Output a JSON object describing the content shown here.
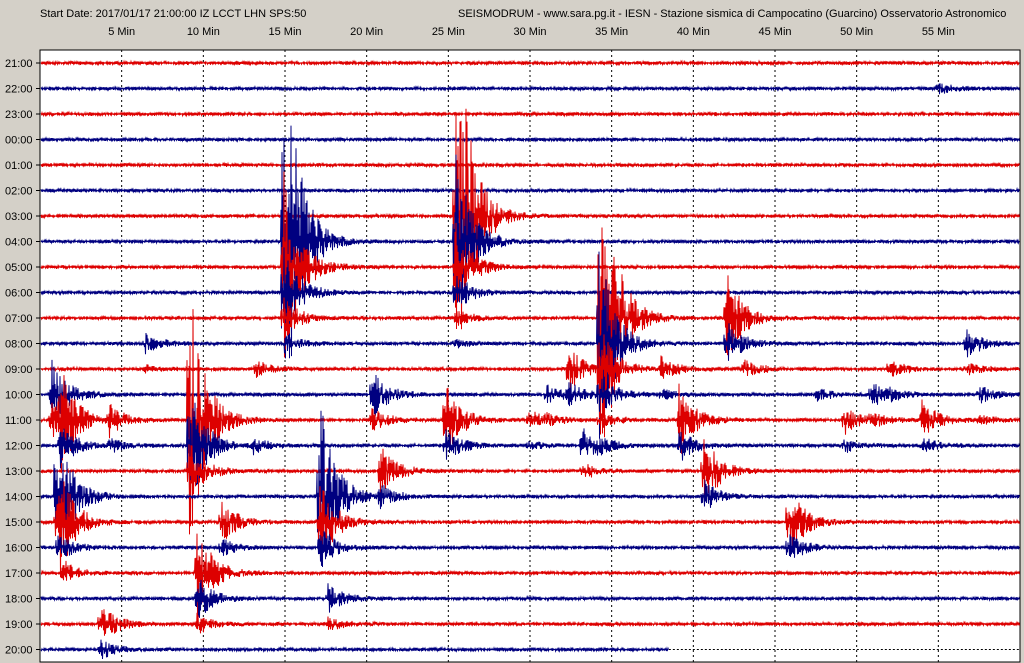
{
  "header": {
    "start_info": "Start Date: 2017/01/17 21:00:00 IZ LCCT LHN SPS:50",
    "station_info": "SEISMODRUM - www.sara.pg.it - IESN - Stazione sismica di Campocatino (Guarcino) Osservatorio Astronomico"
  },
  "chart_data": {
    "type": "line",
    "x_tick_labels": [
      "5 Min",
      "10 Min",
      "15 Min",
      "20 Min",
      "25 Min",
      "30 Min",
      "35 Min",
      "40 Min",
      "45 Min",
      "50 Min",
      "55 Min"
    ],
    "x_ticks_min": [
      5,
      10,
      15,
      20,
      25,
      30,
      35,
      40,
      45,
      50,
      55
    ],
    "xlim": [
      0,
      60
    ],
    "row_labels": [
      "21:00",
      "22:00",
      "23:00",
      "00:00",
      "01:00",
      "02:00",
      "03:00",
      "04:00",
      "05:00",
      "06:00",
      "07:00",
      "08:00",
      "09:00",
      "10:00",
      "11:00",
      "12:00",
      "13:00",
      "14:00",
      "15:00",
      "16:00",
      "17:00",
      "18:00",
      "19:00",
      "20:00"
    ],
    "trace_colors": [
      "#dd0000",
      "#000080"
    ],
    "grid": true,
    "events": [
      {
        "min": 0.7,
        "row": 13,
        "amp": 3.0,
        "dur": 2
      },
      {
        "min": 1.2,
        "row": 14,
        "amp": 4.0,
        "dur": 2
      },
      {
        "min": 1.0,
        "row": 17,
        "amp": 6.0,
        "dur": 2
      },
      {
        "min": 1.1,
        "row": 18,
        "amp": 2.5,
        "dur": 2
      },
      {
        "min": 1.4,
        "row": 20,
        "amp": 1.0,
        "dur": 1
      },
      {
        "min": 3.7,
        "row": 22,
        "amp": 1.6,
        "dur": 2
      },
      {
        "min": 4.2,
        "row": 14,
        "amp": 1.2,
        "dur": 2
      },
      {
        "min": 6.4,
        "row": 11,
        "amp": 0.8,
        "dur": 2
      },
      {
        "min": 9.1,
        "row": 14,
        "amp": 12.0,
        "dur": 3
      },
      {
        "min": 9.6,
        "row": 20,
        "amp": 4.0,
        "dur": 3
      },
      {
        "min": 11.1,
        "row": 18,
        "amp": 1.7,
        "dur": 2
      },
      {
        "min": 13.0,
        "row": 15,
        "amp": 0.6,
        "dur": 1
      },
      {
        "min": 13.2,
        "row": 12,
        "amp": 0.7,
        "dur": 1
      },
      {
        "min": 14.9,
        "row": 7,
        "amp": 18.0,
        "dur": 5
      },
      {
        "min": 17.1,
        "row": 17,
        "amp": 8.0,
        "dur": 3
      },
      {
        "min": 17.6,
        "row": 21,
        "amp": 1.2,
        "dur": 2
      },
      {
        "min": 20.3,
        "row": 13,
        "amp": 2.0,
        "dur": 2
      },
      {
        "min": 20.8,
        "row": 16,
        "amp": 2.0,
        "dur": 2
      },
      {
        "min": 24.8,
        "row": 14,
        "amp": 3.0,
        "dur": 2
      },
      {
        "min": 25.4,
        "row": 6,
        "amp": 18.0,
        "dur": 6
      },
      {
        "min": 29.9,
        "row": 14,
        "amp": 0.8,
        "dur": 2
      },
      {
        "min": 31.0,
        "row": 13,
        "amp": 0.8,
        "dur": 2
      },
      {
        "min": 32.3,
        "row": 12,
        "amp": 2.0,
        "dur": 2
      },
      {
        "min": 33.2,
        "row": 15,
        "amp": 1.5,
        "dur": 2
      },
      {
        "min": 34.2,
        "row": 10,
        "amp": 18.0,
        "dur": 6
      },
      {
        "min": 38.0,
        "row": 12,
        "amp": 1.0,
        "dur": 2
      },
      {
        "min": 39.1,
        "row": 14,
        "amp": 3.0,
        "dur": 2
      },
      {
        "min": 40.6,
        "row": 16,
        "amp": 3.0,
        "dur": 2
      },
      {
        "min": 42.0,
        "row": 10,
        "amp": 4.0,
        "dur": 2
      },
      {
        "min": 43.1,
        "row": 12,
        "amp": 0.7,
        "dur": 1
      },
      {
        "min": 45.8,
        "row": 18,
        "amp": 3.0,
        "dur": 2
      },
      {
        "min": 47.5,
        "row": 13,
        "amp": 0.6,
        "dur": 1
      },
      {
        "min": 49.2,
        "row": 14,
        "amp": 1.2,
        "dur": 2
      },
      {
        "min": 50.9,
        "row": 13,
        "amp": 1.0,
        "dur": 2
      },
      {
        "min": 52.0,
        "row": 12,
        "amp": 0.7,
        "dur": 2
      },
      {
        "min": 54.0,
        "row": 14,
        "amp": 1.5,
        "dur": 2
      },
      {
        "min": 56.7,
        "row": 11,
        "amp": 1.2,
        "dur": 2
      },
      {
        "min": 57.5,
        "row": 13,
        "amp": 0.8,
        "dur": 2
      },
      {
        "min": 55.0,
        "row": 1,
        "amp": 0.5,
        "dur": 1
      }
    ]
  }
}
